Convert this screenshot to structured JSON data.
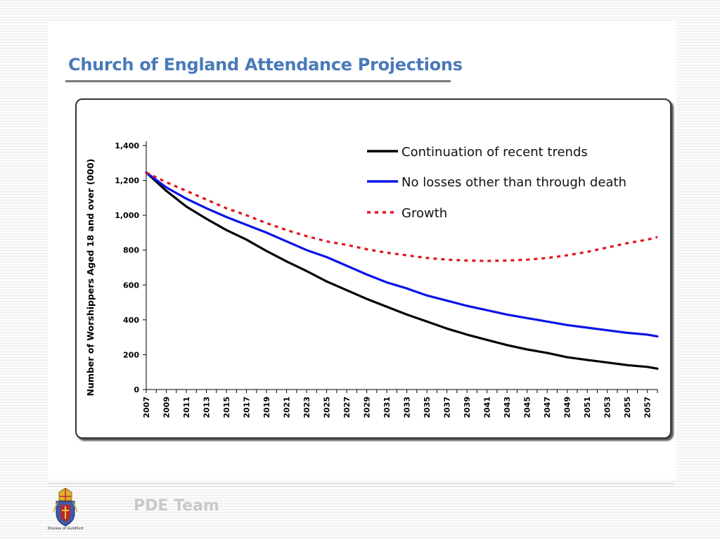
{
  "slide": {
    "title": "Church of England Attendance Projections",
    "footer_text": "PDE Team",
    "logo": {
      "icon": "diocese-crest-icon",
      "caption": "Diocese of Guildford"
    }
  },
  "chart_data": {
    "type": "line",
    "title": "",
    "xlabel": "",
    "ylabel": "Number of Worshippers Aged 18 and over (000)",
    "x_ticks": [
      "2007",
      "2009",
      "2011",
      "2013",
      "2015",
      "2017",
      "2019",
      "2021",
      "2023",
      "2025",
      "2027",
      "2029",
      "2031",
      "2033",
      "2035",
      "2037",
      "2039",
      "2041",
      "2043",
      "2045",
      "2047",
      "2049",
      "2051",
      "2053",
      "2055",
      "2057"
    ],
    "y_ticks": [
      "0",
      "200",
      "400",
      "600",
      "800",
      "1,000",
      "1,200",
      "1,400"
    ],
    "ylim": [
      0,
      1400
    ],
    "xlim": [
      2007,
      2058
    ],
    "grid": false,
    "legend": "top-right",
    "series": [
      {
        "name": "Continuation of recent trends",
        "color": "#000000",
        "style": "solid",
        "x": [
          2007,
          2009,
          2011,
          2013,
          2015,
          2017,
          2019,
          2021,
          2023,
          2025,
          2027,
          2029,
          2031,
          2033,
          2035,
          2037,
          2039,
          2041,
          2043,
          2045,
          2047,
          2049,
          2051,
          2053,
          2055,
          2057,
          2058
        ],
        "y": [
          1245,
          1140,
          1050,
          980,
          915,
          860,
          795,
          735,
          680,
          620,
          570,
          520,
          475,
          430,
          390,
          350,
          315,
          285,
          255,
          230,
          210,
          185,
          170,
          155,
          140,
          130,
          120
        ]
      },
      {
        "name": "No losses other than through death",
        "color": "#0a14e6",
        "style": "solid",
        "x": [
          2007,
          2009,
          2011,
          2013,
          2015,
          2017,
          2019,
          2021,
          2023,
          2025,
          2027,
          2029,
          2031,
          2033,
          2035,
          2037,
          2039,
          2041,
          2043,
          2045,
          2047,
          2049,
          2051,
          2053,
          2055,
          2057,
          2058
        ],
        "y": [
          1245,
          1160,
          1095,
          1040,
          990,
          945,
          900,
          850,
          800,
          760,
          710,
          660,
          615,
          580,
          540,
          510,
          480,
          455,
          430,
          410,
          390,
          370,
          355,
          340,
          325,
          315,
          305
        ]
      },
      {
        "name": "Growth",
        "color": "#e0141e",
        "style": "dotted",
        "x": [
          2007,
          2009,
          2011,
          2013,
          2015,
          2017,
          2019,
          2021,
          2023,
          2025,
          2027,
          2029,
          2031,
          2033,
          2035,
          2037,
          2039,
          2041,
          2043,
          2045,
          2047,
          2049,
          2051,
          2053,
          2055,
          2057,
          2058
        ],
        "y": [
          1245,
          1190,
          1140,
          1090,
          1040,
          1000,
          955,
          915,
          880,
          850,
          830,
          805,
          785,
          770,
          755,
          745,
          740,
          738,
          740,
          745,
          755,
          770,
          790,
          815,
          840,
          860,
          875
        ]
      }
    ]
  }
}
